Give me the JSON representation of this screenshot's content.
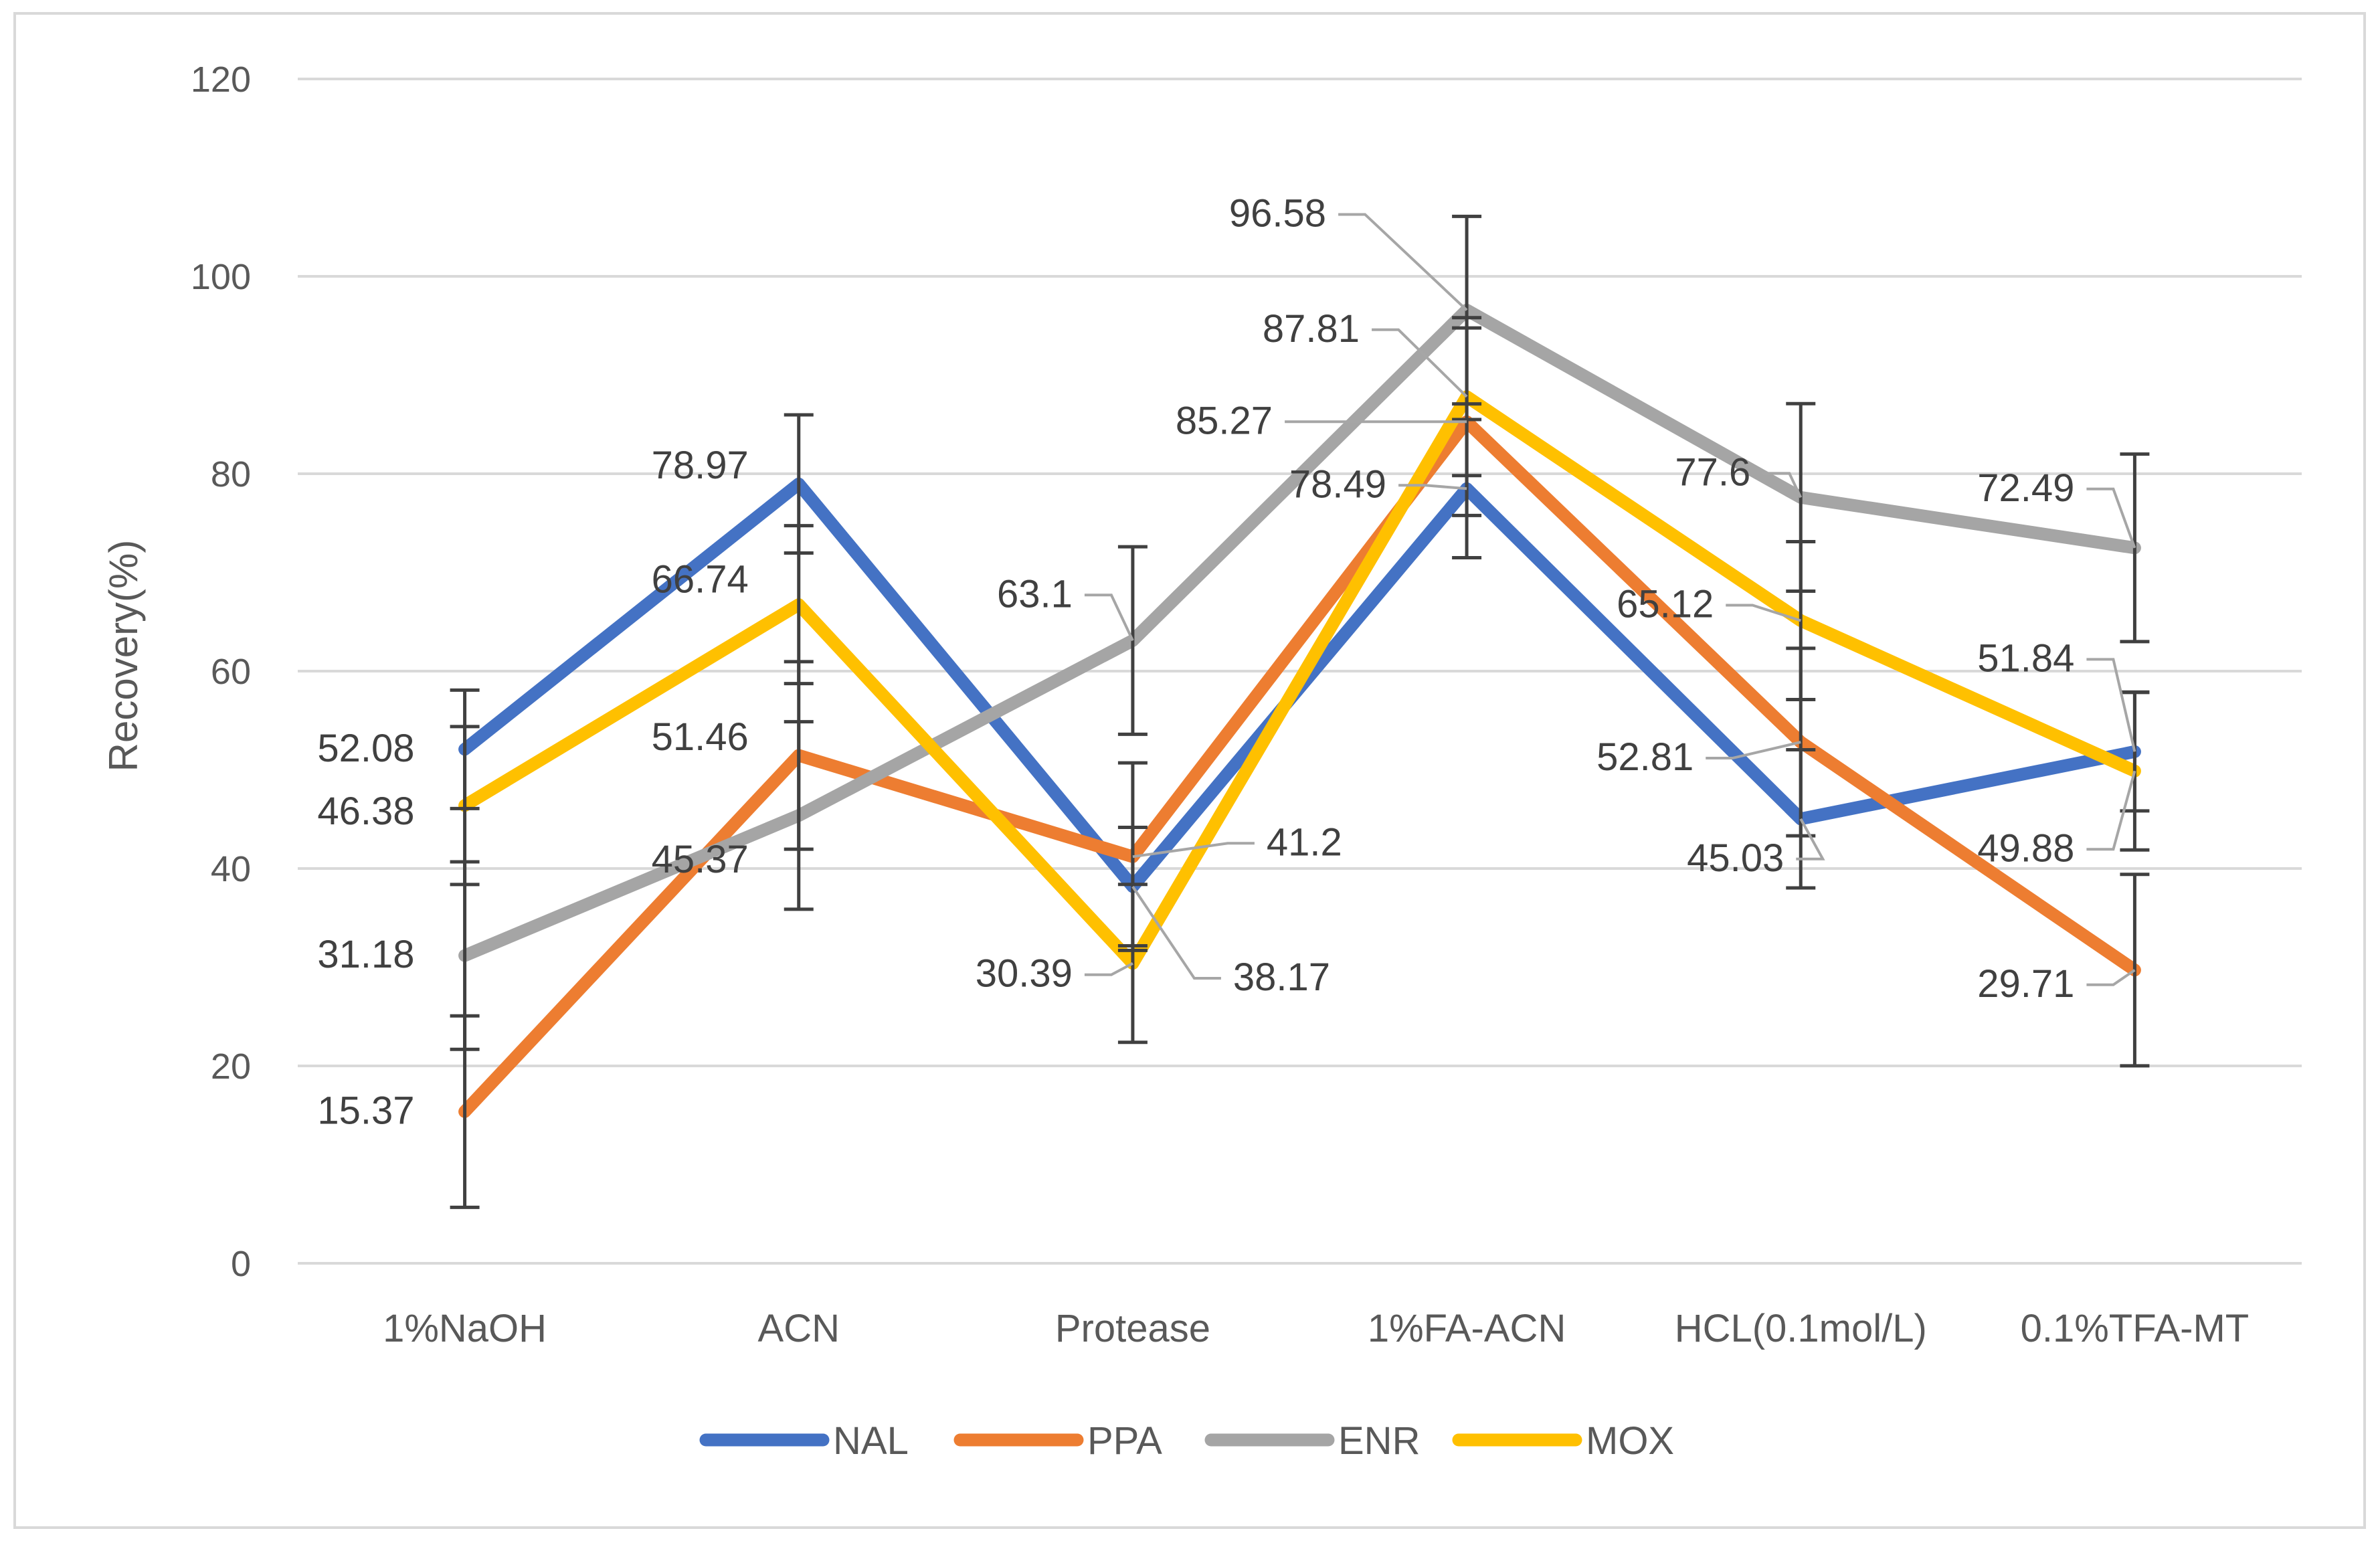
{
  "chart_data": {
    "type": "line",
    "title": "",
    "xlabel": "",
    "ylabel": "Recovery(%)",
    "ylim": [
      0,
      120
    ],
    "yticks": [
      0,
      20,
      40,
      60,
      80,
      100,
      120
    ],
    "grid": true,
    "legend_position": "bottom",
    "categories": [
      "1%NaOH",
      "ACN",
      "Protease",
      "1%FA-ACN",
      "HCL(0.1mol/L)",
      "0.1%TFA-MT"
    ],
    "series": [
      {
        "name": "NAL",
        "color": "#4472C4",
        "values": [
          52.08,
          78.97,
          38.17,
          78.49,
          45.03,
          51.84
        ],
        "error": [
          6,
          7,
          6,
          7,
          7,
          6
        ]
      },
      {
        "name": "PPA",
        "color": "#ED7D31",
        "values": [
          15.37,
          51.46,
          41.2,
          85.27,
          52.81,
          29.71
        ],
        "error": [
          9.7,
          9.5,
          9.5,
          9.5,
          9.5,
          9.7
        ]
      },
      {
        "name": "ENR",
        "color": "#A5A5A5",
        "values": [
          31.18,
          45.37,
          63.1,
          96.58,
          77.6,
          72.49
        ],
        "error": [
          9.5,
          9.5,
          9.5,
          9.5,
          9.5,
          9.5
        ]
      },
      {
        "name": "MOX",
        "color": "#FFC000",
        "values": [
          46.38,
          66.74,
          30.39,
          87.81,
          65.12,
          49.88
        ],
        "error": [
          8,
          8,
          8,
          8,
          8,
          8
        ]
      }
    ],
    "labels_text": {
      "NAL": [
        "52.08",
        "78.97",
        "38.17",
        "78.49",
        "45.03",
        "51.84"
      ],
      "PPA": [
        "15.37",
        "51.46",
        "41.2",
        "85.27",
        "52.81",
        "29.71"
      ],
      "ENR": [
        "31.18",
        "45.37",
        "63.1",
        "96.58",
        "77.6",
        "72.49"
      ],
      "MOX": [
        "46.38",
        "66.74",
        "30.39",
        "87.81",
        "65.12",
        "49.88"
      ]
    }
  }
}
